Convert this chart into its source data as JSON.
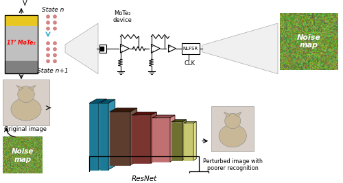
{
  "bg_color": "#ffffff",
  "top_left_label_V": "V",
  "molete_label": "1T’ MoTe₂",
  "state_n": "State n",
  "state_n1": "State n+1",
  "mote2_device": "MoTe₂\ndevice",
  "nlfsr": "NLFSR",
  "clk": "CLK",
  "noise_map": "Noise\nmap",
  "original_image": "Original image",
  "noise_map2": "Noise\nmap",
  "resnet": "ResNet",
  "perturbed": "Perturbed image with\npoorer recognition",
  "layer_colors": [
    "#1d7a96",
    "#1d7a96",
    "#5c3d2e",
    "#7a3530",
    "#c07070",
    "#6e7030",
    "#c8c870"
  ],
  "device_yellow": "#e8c820",
  "device_silver": "#c0c0c0",
  "device_gray": "#808080",
  "dot_color": "#cc6666"
}
